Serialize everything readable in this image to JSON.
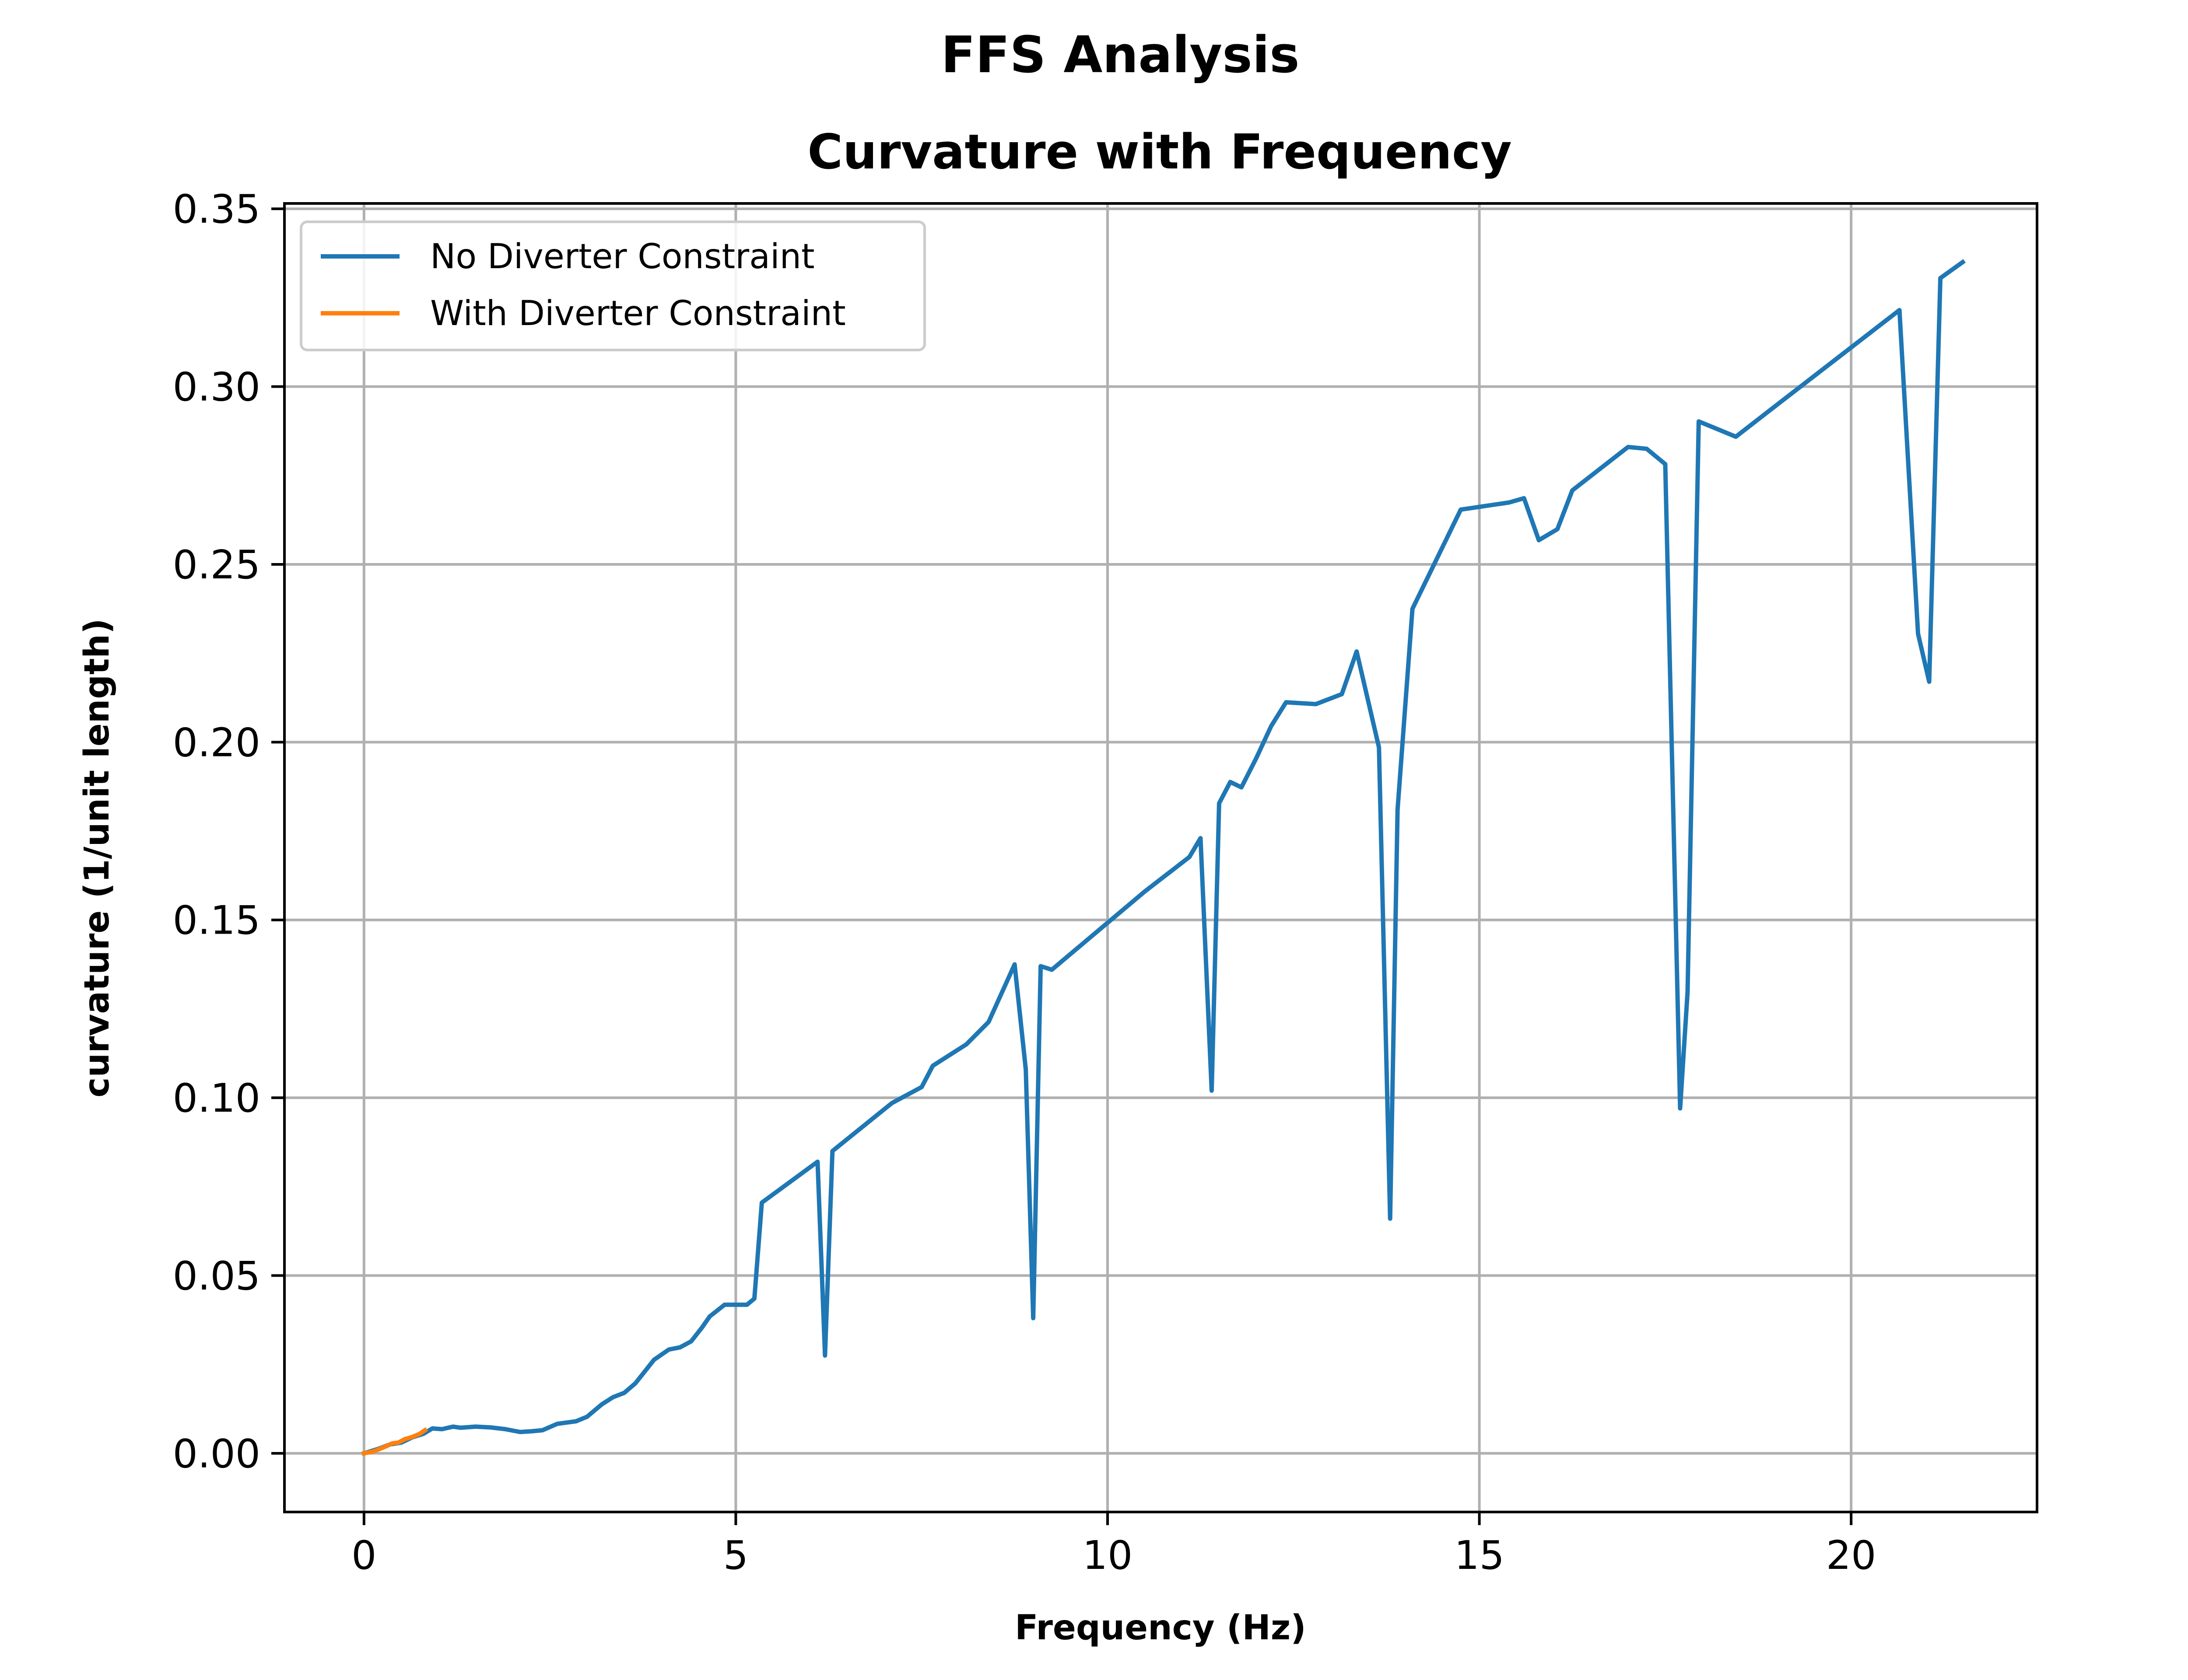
{
  "chart_data": {
    "type": "line",
    "suptitle": "FFS Analysis",
    "title": "Curvature with Frequency",
    "xlabel": "Frequency (Hz)",
    "ylabel": "curvature (1/unit length)",
    "xlim": [
      -1.07,
      22.5
    ],
    "ylim": [
      -0.0165,
      0.3515
    ],
    "xticks": [
      0,
      5,
      10,
      15,
      20
    ],
    "xtick_labels": [
      "0",
      "5",
      "10",
      "15",
      "20"
    ],
    "yticks": [
      0.0,
      0.05,
      0.1,
      0.15,
      0.2,
      0.25,
      0.3,
      0.35
    ],
    "ytick_labels": [
      "0.00",
      "0.05",
      "0.10",
      "0.15",
      "0.20",
      "0.25",
      "0.30",
      "0.35"
    ],
    "grid": true,
    "legend_position": "top-left",
    "series": [
      {
        "name": "No Diverter Constraint",
        "color": "#1f77b4",
        "x": [
          0.0,
          0.2,
          0.35,
          0.5,
          0.65,
          0.8,
          0.92,
          1.05,
          1.2,
          1.3,
          1.5,
          1.7,
          1.9,
          2.1,
          2.25,
          2.4,
          2.6,
          2.85,
          3.0,
          3.2,
          3.35,
          3.5,
          3.65,
          3.9,
          4.1,
          4.25,
          4.4,
          4.55,
          4.65,
          4.85,
          5.0,
          5.15,
          5.25,
          5.35,
          6.1,
          6.2,
          6.3,
          7.1,
          7.5,
          7.65,
          8.1,
          8.4,
          8.75,
          8.9,
          9.0,
          9.1,
          9.25,
          10.5,
          11.1,
          11.25,
          11.4,
          11.5,
          11.65,
          11.8,
          12.0,
          12.2,
          12.4,
          12.8,
          13.15,
          13.35,
          13.65,
          13.8,
          13.9,
          14.1,
          14.75,
          15.4,
          15.6,
          15.8,
          16.05,
          16.25,
          17.0,
          17.25,
          17.5,
          17.7,
          17.8,
          17.95,
          18.45,
          18.85,
          20.65,
          20.9,
          21.05,
          21.2,
          21.5
        ],
        "y": [
          0.0,
          0.0013,
          0.0025,
          0.003,
          0.0045,
          0.0055,
          0.007,
          0.0068,
          0.0075,
          0.0072,
          0.0075,
          0.0073,
          0.0068,
          0.006,
          0.0062,
          0.0065,
          0.0083,
          0.009,
          0.0103,
          0.0138,
          0.0158,
          0.017,
          0.0197,
          0.0263,
          0.0292,
          0.0298,
          0.0315,
          0.0355,
          0.0385,
          0.0418,
          0.0418,
          0.0418,
          0.0435,
          0.0705,
          0.082,
          0.0275,
          0.085,
          0.0985,
          0.103,
          0.109,
          0.115,
          0.1213,
          0.1375,
          0.108,
          0.038,
          0.137,
          0.136,
          0.158,
          0.1677,
          0.173,
          0.102,
          0.1828,
          0.1888,
          0.1873,
          0.1955,
          0.2045,
          0.2112,
          0.2107,
          0.2135,
          0.2255,
          0.1985,
          0.066,
          0.181,
          0.2375,
          0.2654,
          0.2674,
          0.2686,
          0.2568,
          0.2599,
          0.2708,
          0.283,
          0.2825,
          0.2782,
          0.097,
          0.1297,
          0.2902,
          0.2859,
          0.2924,
          0.3215,
          0.2305,
          0.217,
          0.3305,
          0.335
        ]
      },
      {
        "name": "With Diverter Constraint",
        "color": "#ff7f0e",
        "x": [
          0.0,
          0.12,
          0.22,
          0.3,
          0.38,
          0.46,
          0.55,
          0.65,
          0.75,
          0.82
        ],
        "y": [
          0.0,
          0.0005,
          0.0013,
          0.002,
          0.0028,
          0.003,
          0.004,
          0.0046,
          0.0055,
          0.0065
        ]
      }
    ]
  }
}
